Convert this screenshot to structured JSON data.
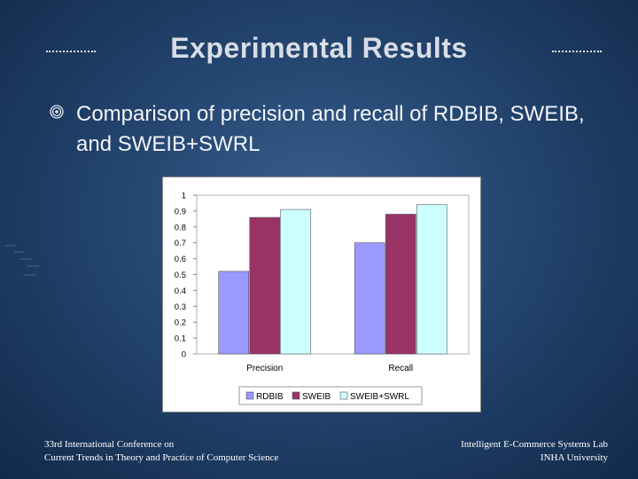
{
  "slide": {
    "title": "Experimental Results",
    "bullet": "Comparison of precision and recall of RDBIB, SWEIB, and SWEIB+SWRL",
    "footer_left_line1": "33rd International Conference on",
    "footer_left_line2": "Current Trends in Theory and Practice of Computer Science",
    "footer_right_line1": "Intelligent E-Commerce  Systems Lab",
    "footer_right_line2": "INHA University",
    "bullet_icon": "circle-bullet-icon"
  },
  "chart_data": {
    "type": "bar",
    "title": "",
    "xlabel": "",
    "ylabel": "",
    "categories": [
      "Precision",
      "Recall"
    ],
    "ylim": [
      0,
      1
    ],
    "yticks": [
      0,
      0.1,
      0.2,
      0.3,
      0.4,
      0.5,
      0.6,
      0.7,
      0.8,
      0.9,
      1
    ],
    "ytick_labels": [
      "0",
      "0.1",
      "0.2",
      "0.3",
      "0.4",
      "0.5",
      "0.6",
      "0.7",
      "0.8",
      "0.9",
      "1"
    ],
    "grid": false,
    "legend_position": "bottom",
    "series": [
      {
        "name": "RDBIB",
        "values": [
          0.52,
          0.7
        ],
        "color": "#9999ff"
      },
      {
        "name": "SWEIB",
        "values": [
          0.86,
          0.88
        ],
        "color": "#993366"
      },
      {
        "name": "SWEIB+SWRL",
        "values": [
          0.91,
          0.94
        ],
        "color": "#ccffff"
      }
    ]
  }
}
